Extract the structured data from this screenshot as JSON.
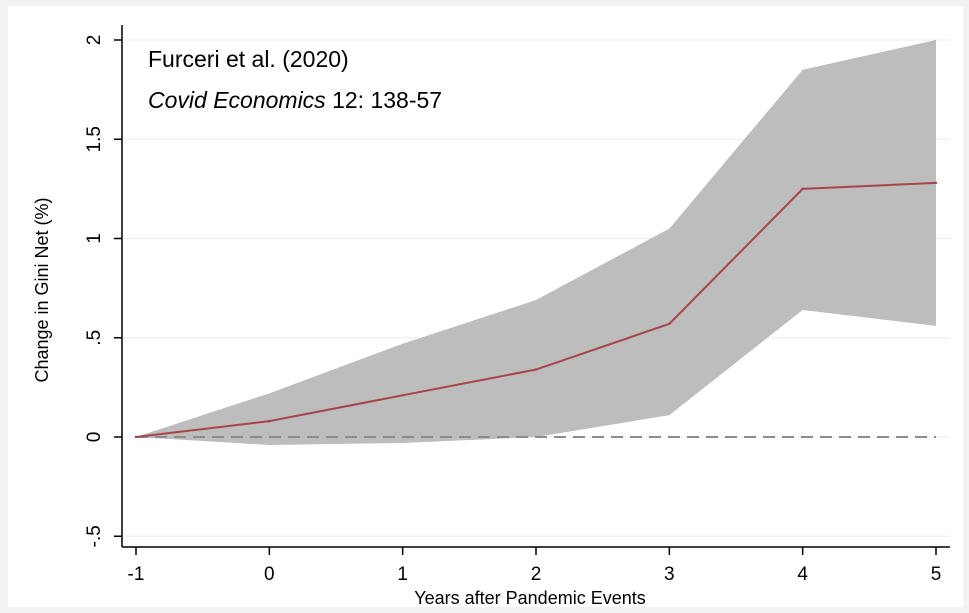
{
  "annotation": {
    "line1": "Furceri et al. (2020)",
    "line2_italic": "Covid Economics",
    "line2_rest": " 12: 138-57"
  },
  "chart_data": {
    "type": "line",
    "x": [
      -1,
      0,
      1,
      2,
      3,
      4,
      5
    ],
    "series": [
      {
        "values": [
          0.0,
          0.08,
          0.21,
          0.34,
          0.57,
          1.25,
          1.28
        ],
        "color": "#a8444b"
      }
    ],
    "confidence_band": {
      "lower": [
        0.0,
        -0.04,
        -0.03,
        0.0,
        0.11,
        0.64,
        0.56
      ],
      "upper": [
        0.0,
        0.22,
        0.47,
        0.69,
        1.05,
        1.85,
        2.0
      ],
      "color": "#bdbdbd"
    },
    "reference_line": {
      "y": 0,
      "style": "dashed",
      "color": "#8c8c8c"
    },
    "xlabel": "Years after Pandemic Events",
    "ylabel": "Change in Gini Net (%)",
    "xticks": [
      "-1",
      "0",
      "1",
      "2",
      "3",
      "4",
      "5"
    ],
    "yticks": [
      "-.5",
      "0",
      ".5",
      "1",
      "1.5",
      "2"
    ],
    "xlim": [
      -1,
      5
    ],
    "ylim": [
      -0.5,
      2
    ],
    "grid": "horizontal"
  }
}
